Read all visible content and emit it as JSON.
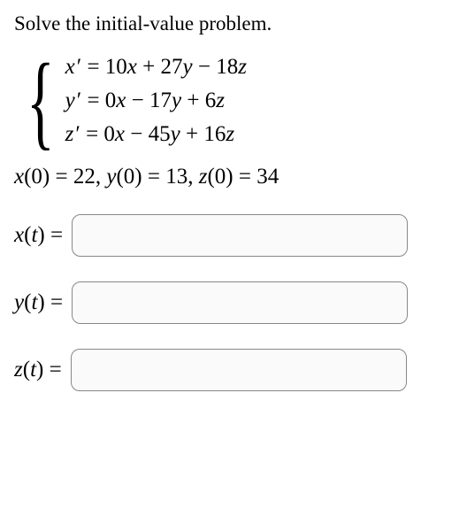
{
  "instruction": "Solve the initial-value problem.",
  "system": {
    "eq1": {
      "lhs_var": "x",
      "rhs_plain": " = 10",
      "v1": "x",
      "op1": " + 27",
      "v2": "y",
      "op2": " − 18",
      "v3": "z"
    },
    "eq2": {
      "lhs_var": "y",
      "rhs_plain": " = 0",
      "v1": "x",
      "op1": " − 17",
      "v2": "y",
      "op2": " + 6",
      "v3": "z"
    },
    "eq3": {
      "lhs_var": "z",
      "rhs_plain": " = 0",
      "v1": "x",
      "op1": " − 45",
      "v2": "y",
      "op2": " + 16",
      "v3": "z"
    }
  },
  "ic": {
    "x0_var": "x",
    "x0_val": "(0) = 22,  ",
    "y0_var": "y",
    "y0_val": "(0) = 13,  ",
    "z0_var": "z",
    "z0_val": "(0) = 34"
  },
  "answers": {
    "xt": {
      "var": "x",
      "arg": "(",
      "t": "t",
      "close": ") = "
    },
    "yt": {
      "var": "y",
      "arg": "(",
      "t": "t",
      "close": ") = "
    },
    "zt": {
      "var": "z",
      "arg": "(",
      "t": "t",
      "close": ") = "
    }
  }
}
